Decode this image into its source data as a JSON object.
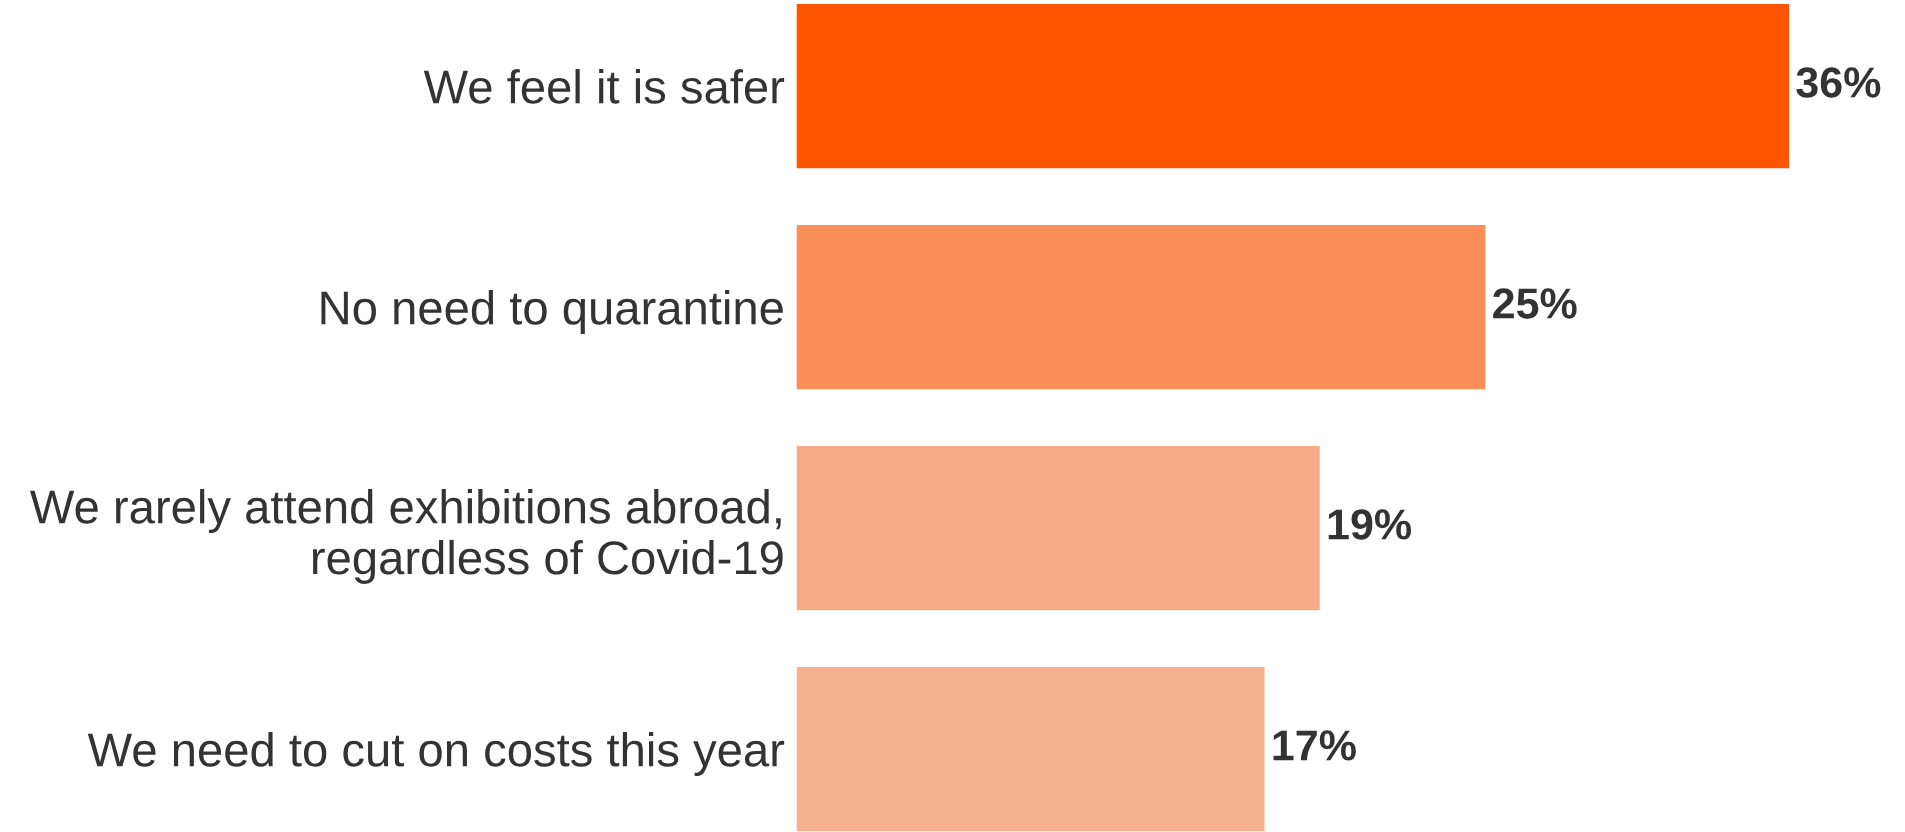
{
  "chart_data": {
    "type": "bar",
    "orientation": "horizontal",
    "categories": [
      "We feel it is safer",
      "No need to quarantine",
      "We rarely attend exhibitions abroad,\nregardless of Covid-19",
      "We need to cut on costs this year"
    ],
    "values": [
      36,
      25,
      19,
      17
    ],
    "colors": [
      "#ff5500",
      "#f98e58",
      "#f7ac88",
      "#f5b08e"
    ],
    "value_labels": [
      "36%",
      "25%",
      "19%",
      "17%"
    ],
    "grid": false,
    "legend": false
  }
}
